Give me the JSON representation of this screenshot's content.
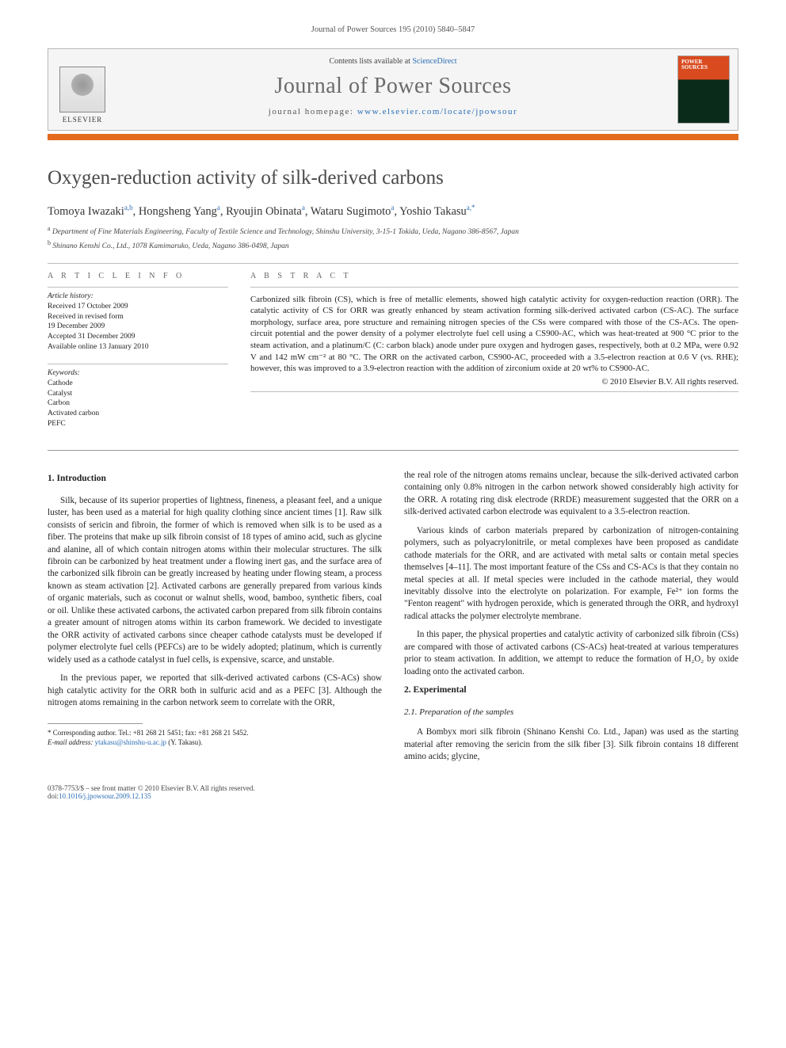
{
  "running_header": "Journal of Power Sources 195 (2010) 5840–5847",
  "banner": {
    "contents_prefix": "Contents lists available at ",
    "contents_link": "ScienceDirect",
    "journal_title": "Journal of Power Sources",
    "homepage_prefix": "journal homepage: ",
    "homepage_url": "www.elsevier.com/locate/jpowsour",
    "publisher": "ELSEVIER",
    "cover_text_1": "POWER",
    "cover_text_2": "SOURCES"
  },
  "title": "Oxygen-reduction activity of silk-derived carbons",
  "authors_html": "Tomoya Iwazaki",
  "authors": [
    {
      "name": "Tomoya Iwazaki",
      "sup": "a,b"
    },
    {
      "name": "Hongsheng Yang",
      "sup": "a"
    },
    {
      "name": "Ryoujin Obinata",
      "sup": "a"
    },
    {
      "name": "Wataru Sugimoto",
      "sup": "a"
    },
    {
      "name": "Yoshio Takasu",
      "sup": "a,*"
    }
  ],
  "affiliations": {
    "a": "Department of Fine Materials Engineering, Faculty of Textile Science and Technology, Shinshu University, 3-15-1 Tokida, Ueda, Nagano 386-8567, Japan",
    "b": "Shinano Kenshi Co., Ltd., 1078 Kamimaruko, Ueda, Nagano 386-0498, Japan"
  },
  "article_info_head": "A R T I C L E   I N F O",
  "abstract_head": "A B S T R A C T",
  "history_label": "Article history:",
  "history": {
    "received": "Received 17 October 2009",
    "revised": "Received in revised form",
    "revised_date": "19 December 2009",
    "accepted": "Accepted 31 December 2009",
    "online": "Available online 13 January 2010"
  },
  "keywords_label": "Keywords:",
  "keywords": [
    "Cathode",
    "Catalyst",
    "Carbon",
    "Activated carbon",
    "PEFC"
  ],
  "abstract": "Carbonized silk fibroin (CS), which is free of metallic elements, showed high catalytic activity for oxygen-reduction reaction (ORR). The catalytic activity of CS for ORR was greatly enhanced by steam activation forming silk-derived activated carbon (CS-AC). The surface morphology, surface area, pore structure and remaining nitrogen species of the CSs were compared with those of the CS-ACs. The open-circuit potential and the power density of a polymer electrolyte fuel cell using a CS900-AC, which was heat-treated at 900 °C prior to the steam activation, and a platinum/C (C: carbon black) anode under pure oxygen and hydrogen gases, respectively, both at 0.2 MPa, were 0.92 V and 142 mW cm⁻² at 80 °C. The ORR on the activated carbon, CS900-AC, proceeded with a 3.5-electron reaction at 0.6 V (vs. RHE); however, this was improved to a 3.9-electron reaction with the addition of zirconium oxide at 20 wt% to CS900-AC.",
  "copyright": "© 2010 Elsevier B.V. All rights reserved.",
  "sections": {
    "intro_head": "1.  Introduction",
    "intro_p1": "Silk, because of its superior properties of lightness, fineness, a pleasant feel, and a unique luster, has been used as a material for high quality clothing since ancient times [1]. Raw silk consists of sericin and fibroin, the former of which is removed when silk is to be used as a fiber. The proteins that make up silk fibroin consist of 18 types of amino acid, such as glycine and alanine, all of which contain nitrogen atoms within their molecular structures. The silk fibroin can be carbonized by heat treatment under a flowing inert gas, and the surface area of the carbonized silk fibroin can be greatly increased by heating under flowing steam, a process known as steam activation [2]. Activated carbons are generally prepared from various kinds of organic materials, such as coconut or walnut shells, wood, bamboo, synthetic fibers, coal or oil. Unlike these activated carbons, the activated carbon prepared from silk fibroin contains a greater amount of nitrogen atoms within its carbon framework. We decided to investigate the ORR activity of activated carbons since cheaper cathode catalysts must be developed if polymer electrolyte fuel cells (PEFCs) are to be widely adopted; platinum, which is currently widely used as a cathode catalyst in fuel cells, is expensive, scarce, and unstable.",
    "intro_p2": "In the previous paper, we reported that silk-derived activated carbons (CS-ACs) show high catalytic activity for the ORR both in sulfuric acid and as a PEFC [3]. Although the nitrogen atoms remaining in the carbon network seem to correlate with the ORR,",
    "intro_p3": "the real role of the nitrogen atoms remains unclear, because the silk-derived activated carbon containing only 0.8% nitrogen in the carbon network showed considerably high activity for the ORR. A rotating ring disk electrode (RRDE) measurement suggested that the ORR on a silk-derived activated carbon electrode was equivalent to a 3.5-electron reaction.",
    "intro_p4": "Various kinds of carbon materials prepared by carbonization of nitrogen-containing polymers, such as polyacrylonitrile, or metal complexes have been proposed as candidate cathode materials for the ORR, and are activated with metal salts or contain metal species themselves [4–11]. The most important feature of the CSs and CS-ACs is that they contain no metal species at all. If metal species were included in the cathode material, they would inevitably dissolve into the electrolyte on polarization. For example, Fe²⁺ ion forms the \"Fenton reagent\" with hydrogen peroxide, which is generated through the ORR, and hydroxyl radical attacks the polymer electrolyte membrane.",
    "intro_p5": "In this paper, the physical properties and catalytic activity of carbonized silk fibroin (CSs) are compared with those of activated carbons (CS-ACs) heat-treated at various temperatures prior to steam activation. In addition, we attempt to reduce the formation of H₂O₂ by oxide loading onto the activated carbon.",
    "exp_head": "2.  Experimental",
    "prep_head": "2.1.  Preparation of the samples",
    "prep_p1": "A Bombyx mori silk fibroin (Shinano Kenshi Co. Ltd., Japan) was used as the starting material after removing the sericin from the silk fiber [3]. Silk fibroin contains 18 different amino acids; glycine,"
  },
  "footnote": {
    "corr": "* Corresponding author. Tel.: +81 268 21 5451; fax: +81 268 21 5452.",
    "email_label": "E-mail address: ",
    "email": "ytakasu@shinshu-u.ac.jp",
    "email_who": " (Y. Takasu)."
  },
  "footer": {
    "left1": "0378-7753/$ – see front matter © 2010 Elsevier B.V. All rights reserved.",
    "left2_label": "doi:",
    "left2_link": "10.1016/j.jpowsour.2009.12.135"
  },
  "colors": {
    "orange": "#e36a1e",
    "link": "#2a6db5",
    "gray_title": "#6a6a6a",
    "rule": "#bdbdbd"
  }
}
